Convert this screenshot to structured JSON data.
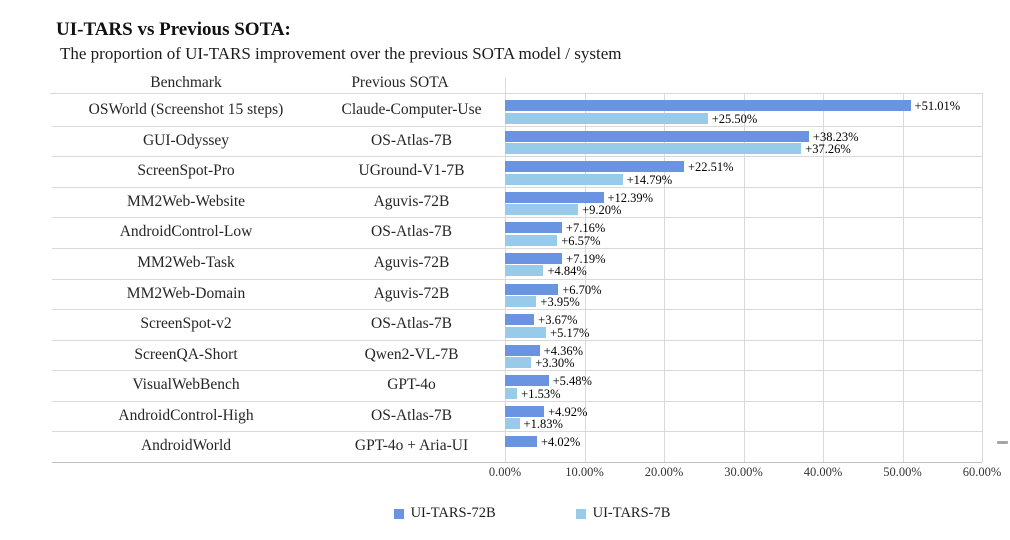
{
  "title": "UI-TARS vs Previous SOTA:",
  "subtitle": "The proportion of UI-TARS improvement over the previous SOTA model / system",
  "table": {
    "benchmark_header": "Benchmark",
    "sota_header": "Previous SOTA"
  },
  "colors": {
    "series_72b": "#6A94E1",
    "series_7b": "#98CAEA",
    "gridline": "#d9d9d9",
    "axis_line": "#bfbfbf"
  },
  "legend": [
    {
      "label": "UI-TARS-72B",
      "color": "#6A94E1"
    },
    {
      "label": "UI-TARS-7B",
      "color": "#98CAEA"
    }
  ],
  "chart_data": {
    "type": "bar",
    "orientation": "horizontal",
    "title": "UI-TARS vs Previous SOTA: The proportion of UI-TARS improvement over the previous SOTA model / system",
    "xlabel": "",
    "ylabel": "",
    "xlim": [
      0,
      60
    ],
    "x_tick_labels": [
      "0.00%",
      "10.00%",
      "20.00%",
      "30.00%",
      "40.00%",
      "50.00%",
      "60.00%"
    ],
    "grid": true,
    "legend_position": "bottom",
    "series": [
      {
        "name": "UI-TARS-72B",
        "color": "#6A94E1",
        "values": [
          51.01,
          38.23,
          22.51,
          12.39,
          7.16,
          7.19,
          6.7,
          3.67,
          4.36,
          5.48,
          4.92,
          4.02
        ]
      },
      {
        "name": "UI-TARS-7B",
        "color": "#98CAEA",
        "values": [
          25.5,
          37.26,
          14.79,
          9.2,
          6.57,
          4.84,
          3.95,
          5.17,
          3.3,
          1.53,
          1.83,
          null
        ]
      }
    ],
    "rows": [
      {
        "benchmark": "OSWorld (Screenshot 15 steps)",
        "previous_sota": "Claude-Computer-Use",
        "ui_tars_72b_label": "+51.01%",
        "ui_tars_7b_label": "+25.50%"
      },
      {
        "benchmark": "GUI-Odyssey",
        "previous_sota": "OS-Atlas-7B",
        "ui_tars_72b_label": "+38.23%",
        "ui_tars_7b_label": "+37.26%"
      },
      {
        "benchmark": "ScreenSpot-Pro",
        "previous_sota": "UGround-V1-7B",
        "ui_tars_72b_label": "+22.51%",
        "ui_tars_7b_label": "+14.79%"
      },
      {
        "benchmark": "MM2Web-Website",
        "previous_sota": "Aguvis-72B",
        "ui_tars_72b_label": "+12.39%",
        "ui_tars_7b_label": "+9.20%"
      },
      {
        "benchmark": "AndroidControl-Low",
        "previous_sota": "OS-Atlas-7B",
        "ui_tars_72b_label": "+7.16%",
        "ui_tars_7b_label": "+6.57%"
      },
      {
        "benchmark": "MM2Web-Task",
        "previous_sota": "Aguvis-72B",
        "ui_tars_72b_label": "+7.19%",
        "ui_tars_7b_label": "+4.84%"
      },
      {
        "benchmark": "MM2Web-Domain",
        "previous_sota": "Aguvis-72B",
        "ui_tars_72b_label": "+6.70%",
        "ui_tars_7b_label": "+3.95%"
      },
      {
        "benchmark": "ScreenSpot-v2",
        "previous_sota": "OS-Atlas-7B",
        "ui_tars_72b_label": "+3.67%",
        "ui_tars_7b_label": "+5.17%"
      },
      {
        "benchmark": "ScreenQA-Short",
        "previous_sota": "Qwen2-VL-7B",
        "ui_tars_72b_label": "+4.36%",
        "ui_tars_7b_label": "+3.30%"
      },
      {
        "benchmark": "VisualWebBench",
        "previous_sota": "GPT-4o",
        "ui_tars_72b_label": "+5.48%",
        "ui_tars_7b_label": "+1.53%"
      },
      {
        "benchmark": "AndroidControl-High",
        "previous_sota": "OS-Atlas-7B",
        "ui_tars_72b_label": "+4.92%",
        "ui_tars_7b_label": "+1.83%"
      },
      {
        "benchmark": "AndroidWorld",
        "previous_sota": "GPT-4o + Aria-UI",
        "ui_tars_72b_label": "+4.02%",
        "ui_tars_7b_label": null
      }
    ]
  }
}
